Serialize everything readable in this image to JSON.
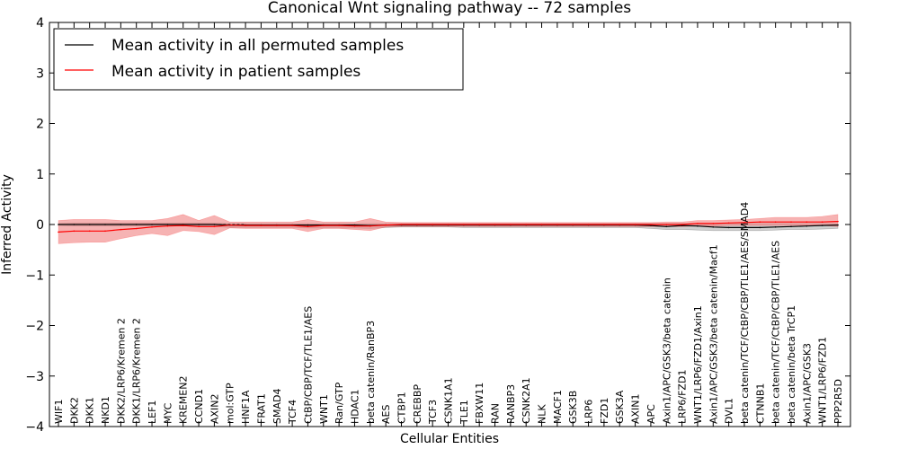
{
  "chart_data": {
    "type": "line",
    "title": "Canonical Wnt signaling pathway -- 72 samples",
    "xlabel": "Cellular Entities",
    "ylabel": "Inferred Activity",
    "ylim": [
      -4,
      4
    ],
    "yticks": [
      -4,
      -3,
      -2,
      -1,
      0,
      1,
      2,
      3,
      4
    ],
    "ytick_labels": [
      "−4",
      "−3",
      "−2",
      "−1",
      "0",
      "1",
      "2",
      "3",
      "4"
    ],
    "grid": false,
    "legend_position": "top-left",
    "categories": [
      "WIF1",
      "DKK2",
      "DKK1",
      "NKD1",
      "DKK2/LRP6/Kremen 2",
      "DKK1/LRP6/Kremen 2",
      "LEF1",
      "MYC",
      "KREMEN2",
      "CCND1",
      "AXIN2",
      "mol:GTP",
      "HNF1A",
      "FRAT1",
      "SMAD4",
      "TCF4",
      "CtBP/CBP/TCF/TLE1/AES",
      "WNT1",
      "Ran/GTP",
      "HDAC1",
      "beta catenin/RanBP3",
      "AES",
      "CTBP1",
      "CREBBP",
      "TCF3",
      "CSNK1A1",
      "TLE1",
      "FBXW11",
      "RAN",
      "RANBP3",
      "CSNK2A1",
      "NLK",
      "MACF1",
      "GSK3B",
      "LRP6",
      "FZD1",
      "GSK3A",
      "AXIN1",
      "APC",
      "Axin1/APC/GSK3/beta catenin",
      "LRP6/FZD1",
      "WNT1/LRP6/FZD1/Axin1",
      "Axin1/APC/GSK3/beta catenin/Macf1",
      "DVL1",
      "beta catenin/TCF/CtBP/CBP/TLE1/AES/SMAD4",
      "CTNNB1",
      "beta catenin/TCF/CtBP/CBP/TLE1/AES",
      "beta catenin/beta TrCP1",
      "Axin1/APC/GSK3",
      "WNT1/LRP6/FZD1",
      "PPP2R5D"
    ],
    "series": [
      {
        "name": "Mean activity in all permuted samples",
        "color": "#000000",
        "band_color": "#aaaaaa",
        "values": [
          0.0,
          0.0,
          0.0,
          0.0,
          0.0,
          0.0,
          0.0,
          0.0,
          0.0,
          0.0,
          0.0,
          -0.01,
          -0.01,
          -0.01,
          -0.01,
          -0.01,
          -0.01,
          -0.01,
          -0.01,
          -0.01,
          -0.02,
          -0.01,
          -0.01,
          -0.01,
          -0.01,
          -0.01,
          -0.01,
          -0.01,
          -0.01,
          -0.01,
          -0.01,
          -0.01,
          -0.01,
          -0.01,
          -0.01,
          -0.01,
          -0.01,
          -0.01,
          -0.02,
          -0.04,
          -0.02,
          -0.03,
          -0.05,
          -0.06,
          -0.06,
          -0.06,
          -0.05,
          -0.04,
          -0.03,
          -0.02,
          -0.01
        ],
        "upper": [
          0.02,
          0.03,
          0.03,
          0.03,
          0.03,
          0.03,
          0.03,
          0.03,
          0.03,
          0.03,
          0.03,
          0.02,
          0.02,
          0.02,
          0.02,
          0.02,
          0.02,
          0.02,
          0.02,
          0.02,
          0.02,
          0.02,
          0.02,
          0.02,
          0.02,
          0.02,
          0.02,
          0.02,
          0.02,
          0.02,
          0.02,
          0.02,
          0.02,
          0.02,
          0.02,
          0.02,
          0.02,
          0.02,
          0.02,
          0.02,
          0.02,
          0.02,
          0.02,
          0.02,
          0.02,
          0.02,
          0.02,
          0.02,
          0.02,
          0.02,
          0.02
        ],
        "lower": [
          -0.02,
          -0.03,
          -0.03,
          -0.03,
          -0.03,
          -0.03,
          -0.03,
          -0.03,
          -0.03,
          -0.03,
          -0.04,
          -0.06,
          -0.06,
          -0.06,
          -0.06,
          -0.06,
          -0.07,
          -0.07,
          -0.07,
          -0.07,
          -0.08,
          -0.06,
          -0.05,
          -0.05,
          -0.05,
          -0.05,
          -0.06,
          -0.06,
          -0.06,
          -0.06,
          -0.06,
          -0.06,
          -0.06,
          -0.06,
          -0.06,
          -0.06,
          -0.06,
          -0.06,
          -0.08,
          -0.1,
          -0.1,
          -0.11,
          -0.12,
          -0.12,
          -0.12,
          -0.12,
          -0.11,
          -0.1,
          -0.1,
          -0.09,
          -0.08
        ]
      },
      {
        "name": "Mean activity in patient samples",
        "color": "#ff0000",
        "band_color": "#f08080",
        "values": [
          -0.15,
          -0.13,
          -0.13,
          -0.13,
          -0.1,
          -0.08,
          -0.05,
          -0.03,
          -0.02,
          -0.04,
          -0.04,
          -0.01,
          -0.02,
          -0.02,
          -0.02,
          -0.02,
          -0.04,
          -0.02,
          -0.02,
          -0.03,
          -0.03,
          -0.01,
          0.0,
          0.0,
          0.0,
          0.0,
          0.0,
          0.0,
          0.0,
          0.0,
          0.0,
          0.0,
          0.0,
          0.0,
          0.0,
          0.0,
          0.0,
          0.0,
          0.0,
          0.0,
          0.0,
          0.02,
          0.02,
          0.03,
          0.04,
          0.05,
          0.05,
          0.05,
          0.05,
          0.05,
          0.06
        ],
        "upper": [
          0.08,
          0.1,
          0.1,
          0.1,
          0.08,
          0.08,
          0.08,
          0.12,
          0.2,
          0.08,
          0.18,
          0.05,
          0.05,
          0.05,
          0.05,
          0.05,
          0.1,
          0.05,
          0.05,
          0.05,
          0.12,
          0.05,
          0.04,
          0.04,
          0.04,
          0.04,
          0.04,
          0.04,
          0.04,
          0.04,
          0.04,
          0.04,
          0.04,
          0.04,
          0.04,
          0.04,
          0.04,
          0.04,
          0.04,
          0.05,
          0.05,
          0.08,
          0.08,
          0.09,
          0.1,
          0.12,
          0.14,
          0.14,
          0.14,
          0.16,
          0.2
        ],
        "lower": [
          -0.38,
          -0.36,
          -0.35,
          -0.35,
          -0.28,
          -0.22,
          -0.18,
          -0.22,
          -0.12,
          -0.14,
          -0.2,
          -0.07,
          -0.08,
          -0.08,
          -0.08,
          -0.08,
          -0.14,
          -0.08,
          -0.08,
          -0.1,
          -0.12,
          -0.05,
          -0.04,
          -0.04,
          -0.04,
          -0.04,
          -0.04,
          -0.04,
          -0.04,
          -0.04,
          -0.04,
          -0.04,
          -0.04,
          -0.04,
          -0.04,
          -0.04,
          -0.04,
          -0.04,
          -0.04,
          -0.04,
          -0.04,
          -0.03,
          -0.03,
          -0.02,
          -0.02,
          -0.02,
          -0.02,
          -0.02,
          -0.02,
          -0.02,
          -0.04
        ]
      }
    ]
  }
}
